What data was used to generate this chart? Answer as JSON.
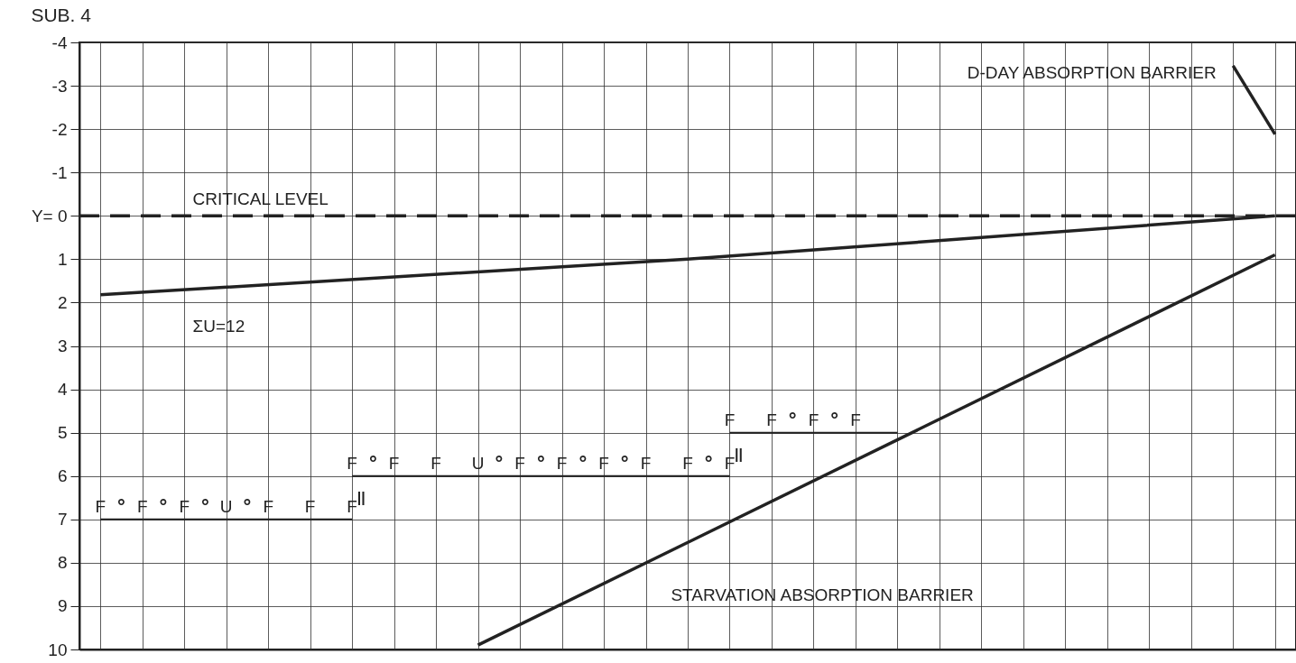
{
  "chart_data": {
    "type": "line",
    "title": "SUB. 4",
    "categories": [
      null,
      null,
      null,
      null,
      null,
      null,
      null,
      null,
      null,
      null,
      null,
      null,
      null,
      null,
      null,
      null,
      null,
      null,
      null,
      null,
      null,
      null,
      null,
      null,
      null,
      null,
      null,
      null,
      null
    ],
    "ylim": [
      10,
      -4
    ],
    "yticks": [
      -4,
      -3,
      -2,
      -1,
      {
        "value": 0,
        "label": "Y= 0"
      },
      1,
      2,
      3,
      4,
      5,
      6,
      7,
      8,
      9,
      10
    ],
    "grid": true,
    "series": [
      {
        "color": "#222222",
        "values": [
          7,
          7,
          7,
          7,
          7,
          7,
          7,
          null,
          null,
          null,
          null,
          null,
          null,
          null,
          null,
          null,
          null,
          null,
          null,
          null,
          null,
          null,
          null,
          null,
          null,
          null,
          null,
          null,
          null
        ],
        "value_labels": [
          "F",
          "F",
          "F",
          "U",
          "F",
          "F",
          "F",
          null,
          null,
          null,
          null,
          null,
          null,
          null,
          null,
          null,
          null,
          null,
          null,
          null,
          null,
          null,
          null,
          null,
          null,
          null,
          null,
          null,
          null
        ]
      },
      {
        "color": "#222222",
        "values": [
          null,
          null,
          null,
          null,
          null,
          null,
          6,
          6,
          6,
          6,
          6,
          6,
          6,
          6,
          6,
          6,
          null,
          null,
          null,
          null,
          null,
          null,
          null,
          null,
          null,
          null,
          null,
          null,
          null
        ],
        "value_labels": [
          null,
          null,
          null,
          null,
          null,
          null,
          "F",
          "F",
          "F",
          "U",
          "F",
          "F",
          "F",
          "F",
          "F",
          "F",
          null,
          null,
          null,
          null,
          null,
          null,
          null,
          null,
          null,
          null,
          null,
          null,
          null
        ]
      },
      {
        "color": "#222222",
        "values": [
          null,
          null,
          null,
          null,
          null,
          null,
          null,
          null,
          null,
          null,
          null,
          null,
          null,
          null,
          null,
          5,
          5,
          5,
          5,
          5,
          null,
          null,
          null,
          null,
          null,
          null,
          null,
          null,
          null
        ],
        "value_labels": [
          null,
          null,
          null,
          null,
          null,
          null,
          null,
          null,
          null,
          null,
          null,
          null,
          null,
          null,
          null,
          "F",
          "F",
          "F",
          "F",
          null,
          null,
          null,
          null,
          null,
          null,
          null,
          null,
          null,
          null
        ]
      },
      {
        "name": "ΣU=12",
        "color": "#222222",
        "values": [
          1.82,
          null,
          null,
          null,
          null,
          null,
          null,
          null,
          null,
          null,
          null,
          null,
          null,
          null,
          1.0,
          null,
          null,
          null,
          null,
          null,
          null,
          null,
          null,
          null,
          null,
          null,
          null,
          null,
          0
        ]
      },
      {
        "name": "D-DAY ABSORPTION BARRIER",
        "color": "#222222",
        "values": [
          null,
          null,
          null,
          null,
          null,
          null,
          null,
          null,
          null,
          null,
          null,
          null,
          null,
          null,
          null,
          null,
          null,
          null,
          null,
          null,
          null,
          null,
          null,
          null,
          null,
          null,
          null,
          -3.46,
          -1.88
        ]
      },
      {
        "name": "STARVATION ABSORPTION BARRIER",
        "color": "#222222",
        "values": [
          null,
          null,
          null,
          null,
          null,
          null,
          null,
          null,
          null,
          9.9,
          null,
          null,
          null,
          null,
          null,
          null,
          null,
          null,
          null,
          null,
          null,
          null,
          null,
          null,
          null,
          null,
          null,
          null,
          0.9
        ]
      }
    ],
    "ref_lines": [
      {
        "axis": "y",
        "value": 0,
        "label": "CRITICAL LEVEL",
        "line_style": "dashed",
        "color": "#222222"
      }
    ],
    "annotations": [
      "°",
      "°",
      "°",
      "°",
      "°",
      "°",
      "°",
      "°",
      "°",
      "°",
      "°",
      "°",
      "||",
      "||"
    ]
  }
}
